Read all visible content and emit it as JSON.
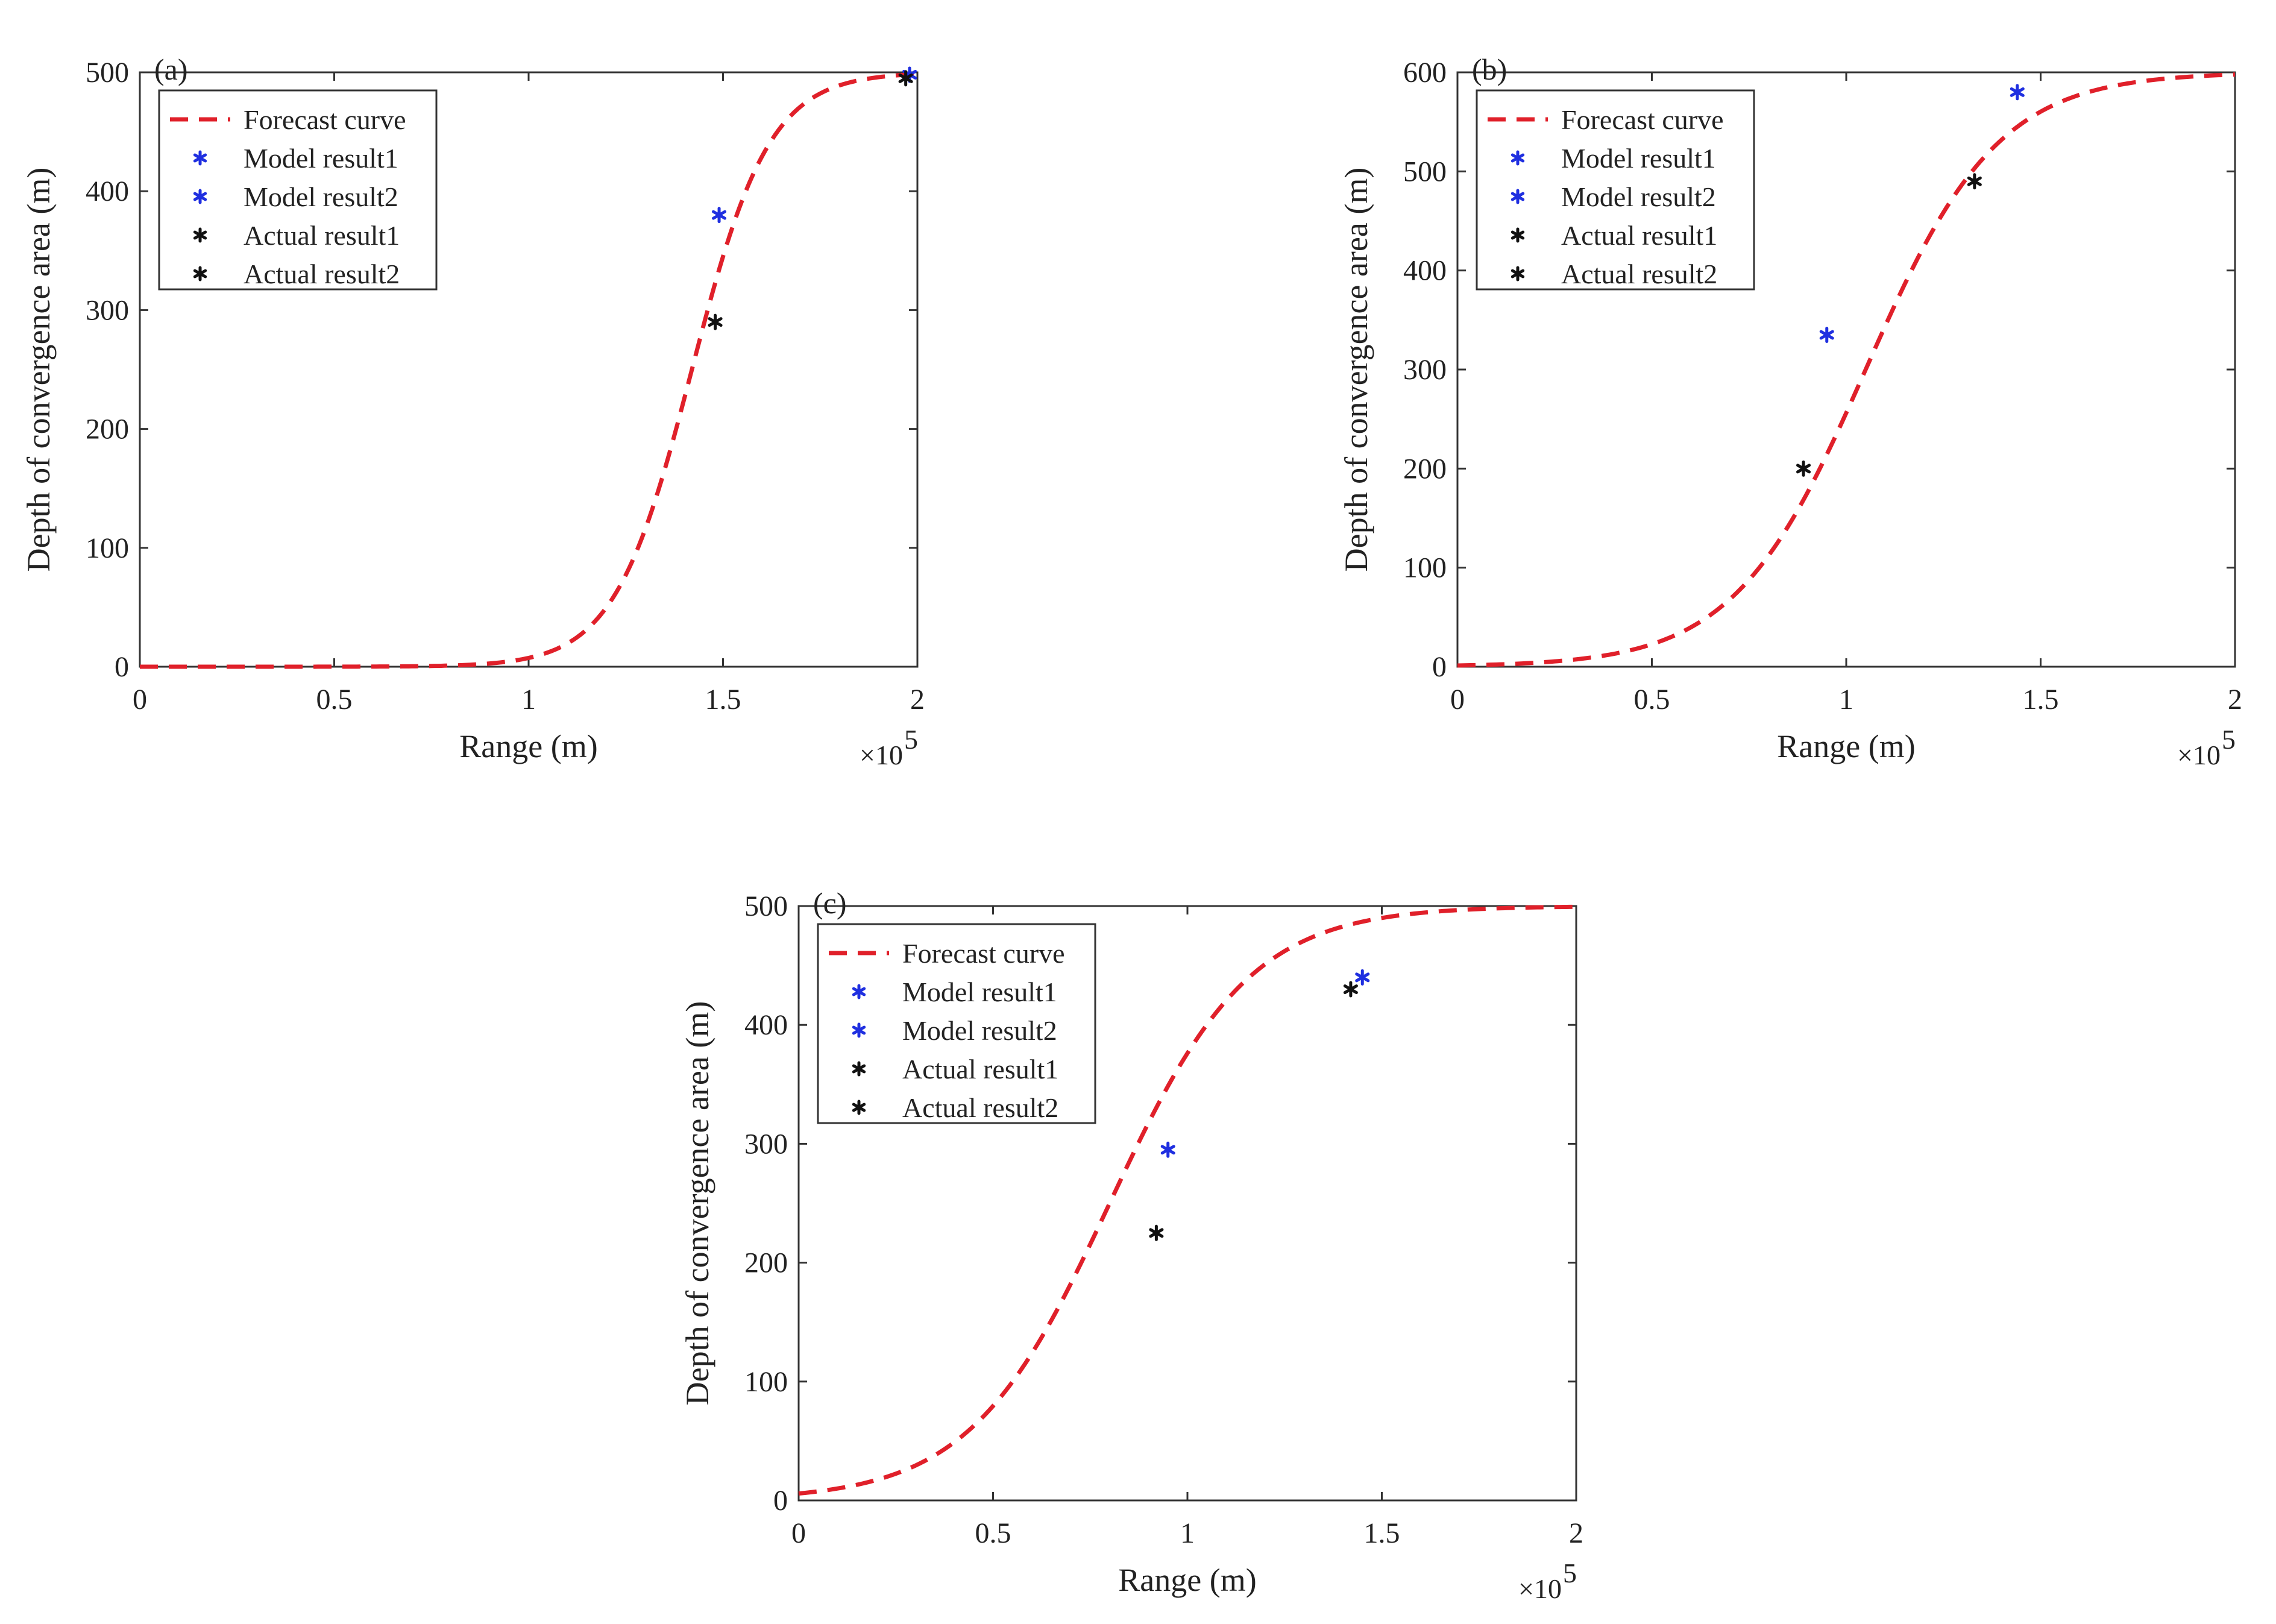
{
  "chart_data": [
    {
      "type": "line",
      "panel_label": "(a)",
      "xlabel": "Range (m)",
      "ylabel": "Depth of convergence area (m)",
      "x_multiplier_base": "×10",
      "x_multiplier_exp": "5",
      "xlim": [
        0,
        2
      ],
      "ylim": [
        0,
        500
      ],
      "xticks": [
        0,
        0.5,
        1,
        1.5,
        2
      ],
      "xtick_labels": [
        "0",
        "0.5",
        "1",
        "1.5",
        "2"
      ],
      "yticks": [
        0,
        100,
        200,
        300,
        400,
        500
      ],
      "ytick_labels": [
        "0",
        "100",
        "200",
        "300",
        "400",
        "500"
      ],
      "legend_position": "top-left",
      "curve": {
        "name": "Forecast curve",
        "color": "#e0202a",
        "style": "dashed",
        "max": 500,
        "center": 1.42,
        "scale": 0.1
      },
      "points": [
        {
          "name": "Model result1",
          "color": "#1f2fe0",
          "x": 1.49,
          "y": 380
        },
        {
          "name": "Model result2",
          "color": "#1f2fe0",
          "x": 1.98,
          "y": 498
        },
        {
          "name": "Actual result1",
          "color": "#111111",
          "x": 1.48,
          "y": 290
        },
        {
          "name": "Actual result2",
          "color": "#111111",
          "x": 1.97,
          "y": 495
        }
      ]
    },
    {
      "type": "line",
      "panel_label": "(b)",
      "xlabel": "Range (m)",
      "ylabel": "Depth of convergence area (m)",
      "x_multiplier_base": "×10",
      "x_multiplier_exp": "5",
      "xlim": [
        0,
        2
      ],
      "ylim": [
        0,
        600
      ],
      "xticks": [
        0,
        0.5,
        1,
        1.5,
        2
      ],
      "xtick_labels": [
        "0",
        "0.5",
        "1",
        "1.5",
        "2"
      ],
      "yticks": [
        0,
        100,
        200,
        300,
        400,
        500,
        600
      ],
      "ytick_labels": [
        "0",
        "100",
        "200",
        "300",
        "400",
        "500",
        "600"
      ],
      "legend_position": "top-left",
      "curve": {
        "name": "Forecast curve",
        "color": "#e0202a",
        "style": "dashed",
        "max": 600,
        "center": 1.05,
        "scale": 0.17
      },
      "points": [
        {
          "name": "Model result1",
          "color": "#1f2fe0",
          "x": 0.95,
          "y": 335
        },
        {
          "name": "Model result2",
          "color": "#1f2fe0",
          "x": 1.44,
          "y": 580
        },
        {
          "name": "Actual result1",
          "color": "#111111",
          "x": 0.89,
          "y": 200
        },
        {
          "name": "Actual result2",
          "color": "#111111",
          "x": 1.33,
          "y": 490
        }
      ]
    },
    {
      "type": "line",
      "panel_label": "(c)",
      "xlabel": "Range (m)",
      "ylabel": "Depth of convergence area (m)",
      "x_multiplier_base": "×10",
      "x_multiplier_exp": "5",
      "xlim": [
        0,
        2
      ],
      "ylim": [
        0,
        500
      ],
      "xticks": [
        0,
        0.5,
        1,
        1.5,
        2
      ],
      "xtick_labels": [
        "0",
        "0.5",
        "1",
        "1.5",
        "2"
      ],
      "yticks": [
        0,
        100,
        200,
        300,
        400,
        500
      ],
      "ytick_labels": [
        "0",
        "100",
        "200",
        "300",
        "400",
        "500"
      ],
      "legend_position": "top-left",
      "curve": {
        "name": "Forecast curve",
        "color": "#e0202a",
        "style": "dashed",
        "max": 500,
        "center": 0.8,
        "scale": 0.18
      },
      "points": [
        {
          "name": "Model result1",
          "color": "#1f2fe0",
          "x": 0.95,
          "y": 295
        },
        {
          "name": "Model result2",
          "color": "#1f2fe0",
          "x": 1.45,
          "y": 440
        },
        {
          "name": "Actual result1",
          "color": "#111111",
          "x": 0.92,
          "y": 225
        },
        {
          "name": "Actual result2",
          "color": "#111111",
          "x": 1.42,
          "y": 430
        }
      ]
    }
  ]
}
